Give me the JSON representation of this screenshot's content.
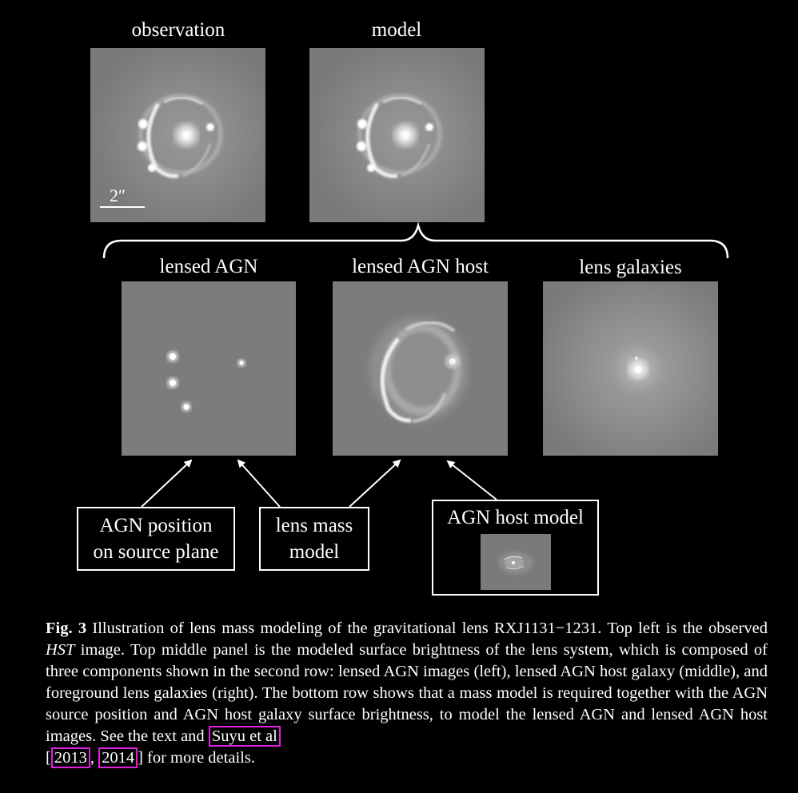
{
  "labels": {
    "observation": "observation",
    "model": "model",
    "lensed_agn": "lensed AGN",
    "lensed_agn_host": "lensed AGN host",
    "lens_galaxies": "lens galaxies",
    "scale_bar": "2″"
  },
  "boxes": {
    "agn_position": [
      "AGN position",
      "on source plane"
    ],
    "lens_mass_model": [
      "lens mass",
      "model"
    ],
    "agn_host_model": "AGN host model"
  },
  "caption": {
    "fig_label": "Fig. 3",
    "text_1": " Illustration of lens mass modeling of the gravitational lens RXJ1131−1231. Top left is the observed ",
    "hst": "HST",
    "text_2": " image. Top middle panel is the modeled surface brightness of the lens system, which is composed of three components shown in the second row: lensed AGN images (left), lensed AGN host galaxy (middle), and foreground lens galaxies (right). The bottom row shows that a mass model is required together with the AGN source position and AGN host galaxy surface brightness, to model the lensed AGN and lensed AGN host images. See the text and ",
    "cite_author": "Suyu et al",
    "bracket_open": "[",
    "cite_year_1": "2013",
    "sep": ", ",
    "cite_year_2": "2014",
    "text_3": "] for more details."
  },
  "colors": {
    "background": "#000000",
    "panel_gray": "#7a7a7a",
    "citation_border": "#e020e0"
  }
}
